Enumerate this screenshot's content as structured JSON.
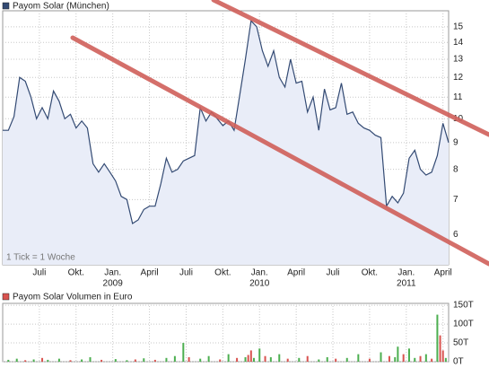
{
  "chart_data": [
    {
      "type": "line",
      "title": "Payom Solar (München)",
      "note": "1 Tick = 1 Woche",
      "color": "#334a73",
      "fill": "#e9edf8",
      "log": true,
      "grid": true,
      "x": [
        0,
        2,
        4,
        6,
        8,
        10,
        12,
        14,
        16,
        18,
        20,
        22,
        24,
        26,
        28,
        30,
        32,
        34,
        36,
        38,
        40,
        42,
        44,
        46,
        48,
        50,
        52,
        54,
        56,
        58,
        60,
        62,
        64,
        66,
        68,
        70,
        72,
        74,
        76,
        78,
        80,
        82,
        84,
        86,
        88,
        90,
        92,
        94,
        96,
        98,
        100,
        102,
        104,
        106,
        108,
        110,
        112,
        114,
        116,
        118,
        120,
        122,
        124,
        126,
        128,
        130,
        132,
        134,
        136,
        138,
        140,
        142,
        144,
        146,
        148,
        150,
        152,
        154,
        156,
        158
      ],
      "values": [
        9.5,
        9.5,
        10.1,
        12.0,
        11.8,
        11.0,
        10.0,
        10.5,
        10.0,
        11.3,
        10.8,
        10.0,
        10.2,
        9.6,
        9.9,
        9.6,
        8.2,
        7.9,
        8.2,
        7.9,
        7.6,
        7.1,
        7.0,
        6.3,
        6.4,
        6.7,
        6.8,
        6.8,
        7.5,
        8.4,
        7.9,
        8.0,
        8.3,
        8.4,
        8.5,
        10.5,
        9.9,
        10.3,
        10.0,
        9.7,
        9.9,
        9.5,
        11.1,
        13.0,
        15.4,
        15.0,
        13.5,
        12.6,
        13.5,
        12.0,
        11.5,
        13.0,
        11.7,
        11.8,
        10.3,
        11.0,
        9.5,
        11.4,
        10.4,
        10.5,
        11.7,
        10.2,
        10.3,
        9.8,
        9.6,
        9.5,
        9.3,
        9.2,
        6.8,
        7.1,
        6.9,
        7.2,
        8.4,
        8.7,
        8.0,
        7.8,
        7.9,
        8.5,
        9.8,
        9.0
      ],
      "xlim": [
        0,
        158
      ],
      "ylim": [
        5.25,
        16.1
      ],
      "yticks": [
        6,
        7,
        8,
        9,
        10,
        11,
        12,
        13,
        14,
        15
      ],
      "xticks": [
        {
          "value": 13,
          "label": "Juli"
        },
        {
          "value": 26,
          "label": "Okt."
        },
        {
          "value": 39,
          "label": "Jan."
        },
        {
          "value": 52,
          "label": "April"
        },
        {
          "value": 65,
          "label": "Juli"
        },
        {
          "value": 78,
          "label": "Okt."
        },
        {
          "value": 91,
          "label": "Jan."
        },
        {
          "value": 104,
          "label": "April"
        },
        {
          "value": 117,
          "label": "Juli"
        },
        {
          "value": 130,
          "label": "Okt."
        },
        {
          "value": 143,
          "label": "Jan."
        },
        {
          "value": 156,
          "label": "April"
        }
      ],
      "year_ticks": [
        {
          "value": 39,
          "label": "2009"
        },
        {
          "value": 91,
          "label": "2010"
        },
        {
          "value": 143,
          "label": "2011"
        }
      ]
    },
    {
      "type": "bar",
      "title": "Payom Solar Volumen in Euro",
      "legend_color": "#d9534f",
      "x": [
        2,
        5,
        8,
        11,
        14,
        16,
        20,
        24,
        28,
        31,
        35,
        40,
        44,
        47,
        50,
        54,
        58,
        61,
        64,
        66,
        70,
        73,
        77,
        80,
        83,
        86,
        87,
        88,
        89,
        91,
        93,
        95,
        98,
        101,
        105,
        108,
        112,
        115,
        118,
        122,
        126,
        130,
        134,
        137,
        139,
        140,
        142,
        144,
        146,
        148,
        150,
        152,
        154,
        155,
        156,
        157
      ],
      "values": [
        5,
        8,
        4,
        6,
        10,
        5,
        8,
        4,
        6,
        12,
        5,
        7,
        4,
        6,
        9,
        5,
        10,
        15,
        50,
        12,
        8,
        15,
        6,
        20,
        10,
        12,
        18,
        30,
        10,
        35,
        15,
        12,
        20,
        8,
        10,
        15,
        6,
        12,
        8,
        10,
        20,
        8,
        25,
        15,
        12,
        40,
        20,
        35,
        10,
        15,
        20,
        8,
        125,
        70,
        30,
        10
      ],
      "colors": [
        "#4caf50",
        "#4caf50",
        "#d9534f",
        "#4caf50",
        "#d9534f",
        "#4caf50",
        "#4caf50",
        "#d9534f",
        "#4caf50",
        "#4caf50",
        "#d9534f",
        "#4caf50",
        "#4caf50",
        "#d9534f",
        "#4caf50",
        "#d9534f",
        "#4caf50",
        "#4caf50",
        "#4caf50",
        "#d9534f",
        "#4caf50",
        "#4caf50",
        "#d9534f",
        "#4caf50",
        "#d9534f",
        "#4caf50",
        "#d9534f",
        "#d9534f",
        "#4caf50",
        "#4caf50",
        "#d9534f",
        "#4caf50",
        "#4caf50",
        "#d9534f",
        "#4caf50",
        "#d9534f",
        "#4caf50",
        "#4caf50",
        "#d9534f",
        "#4caf50",
        "#4caf50",
        "#d9534f",
        "#4caf50",
        "#d9534f",
        "#4caf50",
        "#4caf50",
        "#d9534f",
        "#4caf50",
        "#4caf50",
        "#d9534f",
        "#4caf50",
        "#d9534f",
        "#4caf50",
        "#d9534f",
        "#d9534f",
        "#4caf50"
      ],
      "xlim": [
        0,
        158
      ],
      "ylim": [
        0,
        155
      ],
      "yticks": [
        {
          "value": 0,
          "label": "0T"
        },
        {
          "value": 50,
          "label": "50T"
        },
        {
          "value": 100,
          "label": "100T"
        },
        {
          "value": 150,
          "label": "150T"
        }
      ]
    }
  ]
}
